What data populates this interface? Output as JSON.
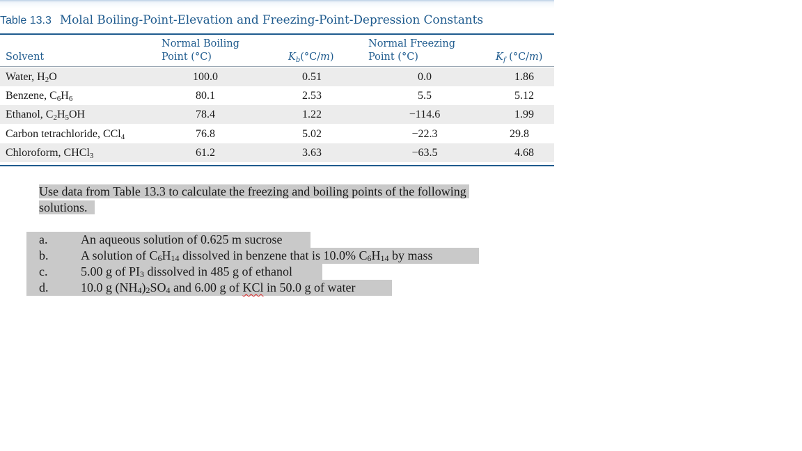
{
  "caption": {
    "number": "Table 13.3",
    "title": "Molal Boiling-Point-Elevation and Freezing-Point-Depression Constants"
  },
  "headers": {
    "solvent": "Solvent",
    "bp_line1": "Normal Boiling",
    "bp_line2": "Point (°C)",
    "kb": "Kb(°C/m)",
    "fp_line1": "Normal Freezing",
    "fp_line2": "Point (°C)",
    "kf": "Kf (°C/m)"
  },
  "rows": [
    {
      "solvent": "Water, H2O",
      "bp": "100.0",
      "kb": "0.51",
      "fp": "0.0",
      "kf": "1.86"
    },
    {
      "solvent": "Benzene, C6H6",
      "bp": "80.1",
      "kb": "2.53",
      "fp": "5.5",
      "kf": "5.12"
    },
    {
      "solvent": "Ethanol, C2H5OH",
      "bp": "78.4",
      "kb": "1.22",
      "fp": "−114.6",
      "kf": "1.99"
    },
    {
      "solvent": "Carbon tetrachloride, CCl4",
      "bp": "76.8",
      "kb": "5.02",
      "fp": "−22.3",
      "kf": "29.8"
    },
    {
      "solvent": "Chloroform, CHCl3",
      "bp": "61.2",
      "kb": "3.63",
      "fp": "−63.5",
      "kf": "4.68"
    }
  ],
  "prompt": {
    "line1": "Use data from Table 13.3 to calculate the freezing and boiling points of the following",
    "line2": "solutions."
  },
  "parts": [
    {
      "letter": "a.",
      "text": "An aqueous solution of 0.625 m sucrose"
    },
    {
      "letter": "b.",
      "text": "A solution of C6H14 dissolved in benzene that is 10.0% C6H14 by mass"
    },
    {
      "letter": "c.",
      "text": "5.00 g of PI3 dissolved in 485 g of ethanol"
    },
    {
      "letter": "d.",
      "text": "10.0 g (NH4)2SO4 and 6.00 g of KCl in 50.0 g of water"
    }
  ]
}
